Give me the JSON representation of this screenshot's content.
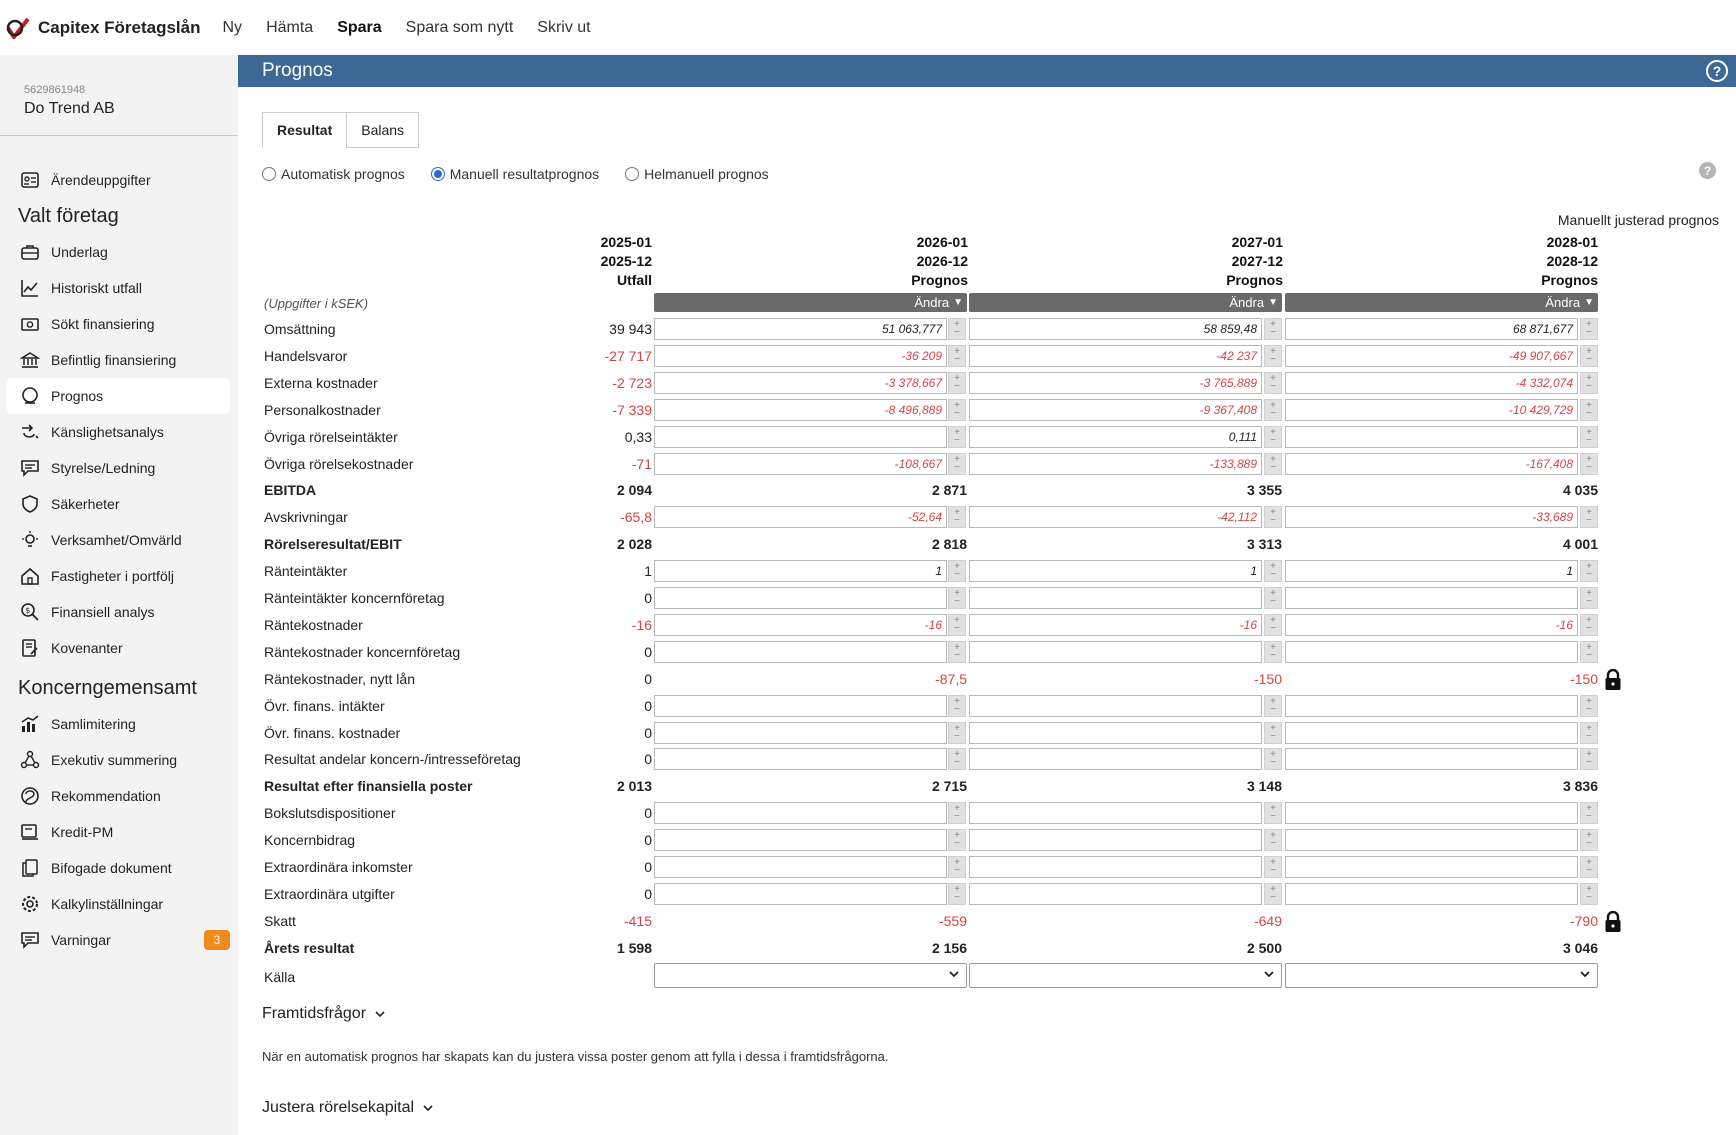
{
  "app": {
    "title": "Capitex Företagslån",
    "menu": [
      "Ny",
      "Hämta",
      "Spara",
      "Spara som nytt",
      "Skriv ut"
    ]
  },
  "company": {
    "orgnr": "5629861948",
    "name": "Do Trend AB"
  },
  "sidebar": {
    "top_item": "Ärendeuppgifter",
    "section1": "Valt företag",
    "items1": [
      "Underlag",
      "Historiskt utfall",
      "Sökt finansiering",
      "Befintlig finansiering",
      "Prognos",
      "Känslighetsanalys",
      "Styrelse/Ledning",
      "Säkerheter",
      "Verksamhet/Omvärld",
      "Fastigheter i portfölj",
      "Finansiell analys",
      "Kovenanter"
    ],
    "section2": "Koncerngemensamt",
    "items2": [
      "Samlimitering",
      "Exekutiv summering",
      "Rekommendation",
      "Kredit-PM",
      "Bifogade dokument",
      "Kalkylinställningar",
      "Varningar"
    ],
    "warnings_count": "3"
  },
  "main": {
    "title": "Prognos",
    "help": "?",
    "tabs": [
      "Resultat",
      "Balans"
    ],
    "radios": [
      "Automatisk prognos",
      "Manuell resultatprognos",
      "Helmanuell prognos"
    ],
    "manual_note": "Manuellt justerad prognos",
    "unit_note": "(Uppgifter i kSEK)",
    "andra": "Ändra",
    "columns": [
      {
        "from": "2025-01",
        "to": "2025-12",
        "kind": "Utfall"
      },
      {
        "from": "2026-01",
        "to": "2026-12",
        "kind": "Prognos"
      },
      {
        "from": "2027-01",
        "to": "2027-12",
        "kind": "Prognos"
      },
      {
        "from": "2028-01",
        "to": "2028-12",
        "kind": "Prognos"
      }
    ],
    "rows": [
      {
        "label": "Omsättning",
        "actual": "39 943",
        "type": "input",
        "vals": [
          "51 063,777",
          "58 859,48",
          "68 871,677"
        ]
      },
      {
        "label": "Handelsvaror",
        "actual": "-27 717",
        "type": "input",
        "vals": [
          "-36 209",
          "-42 237",
          "-49 907,667"
        ]
      },
      {
        "label": "Externa kostnader",
        "actual": "-2 723",
        "type": "input",
        "vals": [
          "-3 378,667",
          "-3 765,889",
          "-4 332,074"
        ]
      },
      {
        "label": "Personalkostnader",
        "actual": "-7 339",
        "type": "input",
        "vals": [
          "-8 496,889",
          "-9 367,408",
          "-10 429,729"
        ]
      },
      {
        "label": "Övriga rörelseintäkter",
        "actual": "0,33",
        "type": "input",
        "vals": [
          "",
          "0,111",
          ""
        ]
      },
      {
        "label": "Övriga rörelsekostnader",
        "actual": "-71",
        "type": "input",
        "vals": [
          "-108,667",
          "-133,889",
          "-167,408"
        ]
      },
      {
        "label": "EBITDA",
        "actual": "2 094",
        "type": "sum",
        "vals": [
          "2 871",
          "3 355",
          "4 035"
        ]
      },
      {
        "label": "Avskrivningar",
        "actual": "-65,8",
        "type": "input",
        "vals": [
          "-52,64",
          "-42,112",
          "-33,689"
        ]
      },
      {
        "label": "Rörelseresultat/EBIT",
        "actual": "2 028",
        "type": "sum",
        "vals": [
          "2 818",
          "3 313",
          "4 001"
        ]
      },
      {
        "label": "Ränteintäkter",
        "actual": "1",
        "type": "input",
        "vals": [
          "1",
          "1",
          "1"
        ]
      },
      {
        "label": "Ränteintäkter koncernföretag",
        "actual": "0",
        "type": "input",
        "vals": [
          "",
          "",
          ""
        ]
      },
      {
        "label": "Räntekostnader",
        "actual": "-16",
        "type": "input",
        "vals": [
          "-16",
          "-16",
          "-16"
        ]
      },
      {
        "label": "Räntekostnader koncernföretag",
        "actual": "0",
        "type": "input",
        "vals": [
          "",
          "",
          ""
        ]
      },
      {
        "label": "Räntekostnader, nytt lån",
        "actual": "0",
        "type": "locked",
        "vals": [
          "-87,5",
          "-150",
          "-150"
        ]
      },
      {
        "label": "Övr. finans. intäkter",
        "actual": "0",
        "type": "input",
        "vals": [
          "",
          "",
          ""
        ]
      },
      {
        "label": "Övr. finans. kostnader",
        "actual": "0",
        "type": "input",
        "vals": [
          "",
          "",
          ""
        ]
      },
      {
        "label": "Resultat andelar koncern-/intresseföretag",
        "actual": "0",
        "type": "input",
        "vals": [
          "",
          "",
          ""
        ]
      },
      {
        "label": "Resultat efter finansiella poster",
        "actual": "2 013",
        "type": "sum",
        "vals": [
          "2 715",
          "3 148",
          "3 836"
        ]
      },
      {
        "label": "Bokslutsdispositioner",
        "actual": "0",
        "type": "input",
        "vals": [
          "",
          "",
          ""
        ]
      },
      {
        "label": "Koncernbidrag",
        "actual": "0",
        "type": "input",
        "vals": [
          "",
          "",
          ""
        ]
      },
      {
        "label": "Extraordinära inkomster",
        "actual": "0",
        "type": "input",
        "vals": [
          "",
          "",
          ""
        ]
      },
      {
        "label": "Extraordinära utgifter",
        "actual": "0",
        "type": "input",
        "vals": [
          "",
          "",
          ""
        ]
      },
      {
        "label": "Skatt",
        "actual": "-415",
        "type": "locked",
        "vals": [
          "-559",
          "-649",
          "-790"
        ]
      },
      {
        "label": "Årets resultat",
        "actual": "1 598",
        "type": "sum",
        "vals": [
          "2 156",
          "2 500",
          "3 046"
        ]
      }
    ],
    "source_label": "Källa",
    "sections": {
      "future": "Framtidsfrågor",
      "future_text": "När en automatisk prognos har skapats kan du justera vissa poster genom att fylla i dessa i framtidsfrågorna.",
      "working_capital": "Justera rörelsekapital"
    }
  },
  "colors": {
    "header": "#3b6894",
    "negative": "#d64545",
    "badge": "#f08a1c",
    "radio_on": "#2b6bd4"
  }
}
